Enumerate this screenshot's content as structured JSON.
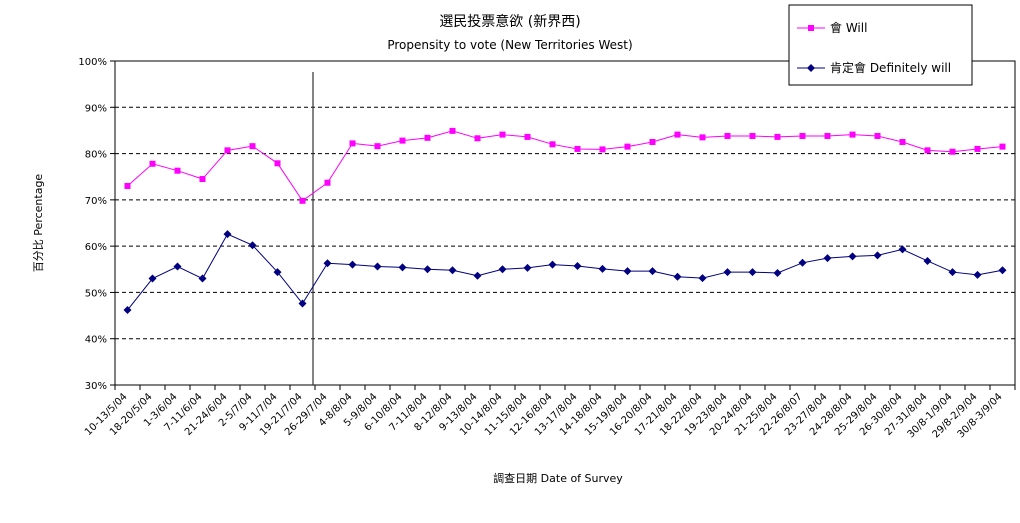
{
  "chart_data": {
    "type": "line",
    "title": "選民投票意欲 (新界西)",
    "subtitle": "Propensity to vote (New Territories West)",
    "xlabel": "調查日期 Date of Survey",
    "ylabel": "百分比 Percentage",
    "ylim": [
      30,
      100
    ],
    "yticks": [
      "30%",
      "40%",
      "50%",
      "60%",
      "70%",
      "80%",
      "90%",
      "100%"
    ],
    "grid": "horizontal-dashed",
    "legend_position": "top-right",
    "categories": [
      "10-13/5/04",
      "18-20/5/04",
      "1-3/6/04",
      "7-11/6/04",
      "21-24/6/04",
      "2-5/7/04",
      "9-11/7/04",
      "19-21/7/04",
      "26-29/7/04",
      "4-8/8/04",
      "5-9/8/04",
      "6-10/8/04",
      "7-11/8/04",
      "8-12/8/04",
      "9-13/8/04",
      "10-14/8/04",
      "11-15/8/04",
      "12-16/8/04",
      "13-17/8/04",
      "14-18/8/04",
      "15-19/8/04",
      "16-20/8/04",
      "17-21/8/04",
      "18-22/8/04",
      "19-23/8/04",
      "20-24/8/04",
      "21-25/8/04",
      "22-26/8/07",
      "23-27/8/04",
      "24-28/8/04",
      "25-29/8/04",
      "26-30/8/04",
      "27-31/8/04",
      "30/8-1/9/04",
      "29/8-2/9/04",
      "30/8-3/9/04"
    ],
    "series": [
      {
        "name": "會 Will",
        "color": "#ff00ff",
        "marker": "square",
        "values": [
          73.0,
          77.8,
          76.3,
          74.5,
          80.7,
          81.6,
          77.9,
          69.8,
          73.7,
          82.2,
          81.6,
          82.8,
          83.4,
          84.9,
          83.3,
          84.1,
          83.6,
          82.0,
          81.0,
          80.9,
          81.5,
          82.5,
          84.1,
          83.5,
          83.8,
          83.8,
          83.6,
          83.8,
          83.8,
          84.1,
          83.8,
          82.5,
          80.7,
          80.4,
          81.0,
          81.5
        ]
      },
      {
        "name": "肯定會 Definitely will",
        "color": "#000080",
        "marker": "diamond",
        "values": [
          46.2,
          53.0,
          55.6,
          53.0,
          62.6,
          60.2,
          54.4,
          47.6,
          56.3,
          56.0,
          55.6,
          55.4,
          55.0,
          54.8,
          53.6,
          55.0,
          55.3,
          56.0,
          55.7,
          55.1,
          54.6,
          54.6,
          53.4,
          53.1,
          54.4,
          54.4,
          54.2,
          56.4,
          57.4,
          57.8,
          58.0,
          59.3,
          56.8,
          54.4,
          53.8,
          54.8
        ]
      }
    ],
    "annotations": [
      {
        "type": "vertical-line",
        "position_between_categories": [
          "19-21/7/04",
          "26-29/7/04"
        ]
      }
    ]
  }
}
